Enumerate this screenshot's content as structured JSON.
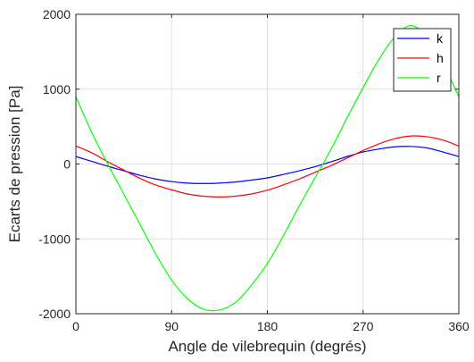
{
  "chart_data": {
    "type": "line",
    "xlabel": "Angle de vilebrequin (degrés)",
    "ylabel": "Ecarts de pression  [Pa]",
    "xlim": [
      0,
      360
    ],
    "ylim": [
      -2000,
      2000
    ],
    "xticks": [
      0,
      90,
      180,
      270,
      360
    ],
    "yticks": [
      -2000,
      -1000,
      0,
      1000,
      2000
    ],
    "grid": true,
    "legend_position": "top-right",
    "x": [
      0,
      15,
      30,
      45,
      60,
      75,
      90,
      105,
      120,
      135,
      150,
      165,
      180,
      195,
      210,
      225,
      240,
      255,
      270,
      285,
      300,
      315,
      330,
      345,
      360
    ],
    "series": [
      {
        "name": "k",
        "color": "#0000ff",
        "values": [
          100,
          35,
          -30,
          -90,
          -150,
          -200,
          -235,
          -255,
          -260,
          -255,
          -240,
          -215,
          -185,
          -140,
          -90,
          -35,
          30,
          100,
          160,
          200,
          230,
          235,
          215,
          160,
          100
        ]
      },
      {
        "name": "h",
        "color": "#ff0000",
        "values": [
          240,
          150,
          30,
          -80,
          -190,
          -280,
          -345,
          -400,
          -430,
          -440,
          -430,
          -400,
          -350,
          -280,
          -200,
          -110,
          -20,
          80,
          180,
          270,
          340,
          375,
          365,
          320,
          240
        ]
      },
      {
        "name": "r",
        "color": "#00ff00",
        "values": [
          900,
          420,
          0,
          -400,
          -800,
          -1200,
          -1550,
          -1800,
          -1940,
          -1950,
          -1850,
          -1620,
          -1330,
          -960,
          -560,
          -180,
          200,
          620,
          1020,
          1400,
          1700,
          1850,
          1700,
          1350,
          900
        ]
      }
    ]
  }
}
